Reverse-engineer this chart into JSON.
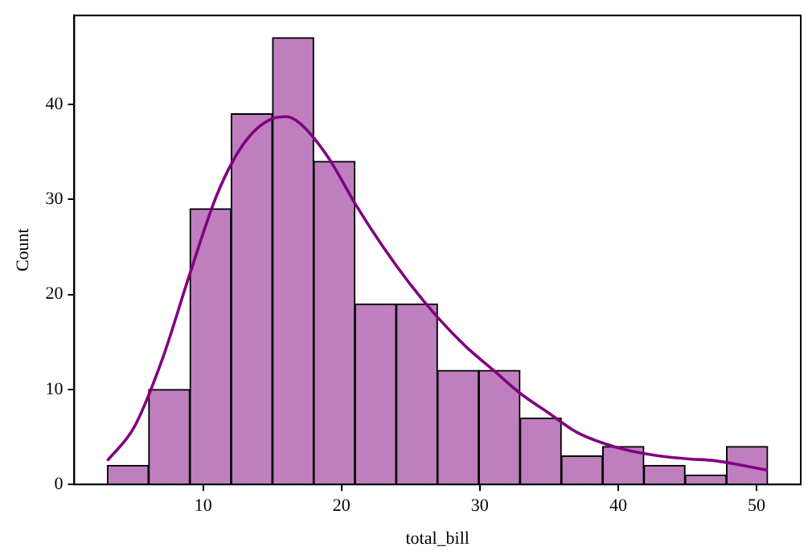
{
  "chart_data": {
    "type": "histogram",
    "xlabel": "total_bill",
    "ylabel": "Count",
    "bins": [
      3.07,
      6.05,
      9.04,
      12.02,
      15.01,
      17.99,
      20.97,
      23.96,
      26.94,
      29.92,
      32.91,
      35.89,
      38.88,
      41.86,
      44.84,
      47.83,
      50.81
    ],
    "values": [
      2,
      10,
      29,
      39,
      47,
      34,
      19,
      19,
      12,
      12,
      7,
      3,
      4,
      2,
      1,
      4
    ],
    "color": "#bf7fbf",
    "series": [
      {
        "type": "line",
        "color": "#800080",
        "x": [
          3.07,
          5,
          7,
          9,
          11,
          13,
          15,
          16,
          17,
          19,
          21,
          23,
          25,
          27,
          29,
          31,
          33,
          35,
          37,
          39,
          41,
          43,
          45,
          47,
          49,
          50.81
        ],
        "values": [
          2.5,
          6,
          13,
          22,
          30.5,
          36,
          38.5,
          38.7,
          38,
          34.5,
          29.5,
          25,
          21,
          17.5,
          14.5,
          12,
          9.5,
          7.5,
          5.5,
          4.3,
          3.5,
          3,
          2.7,
          2.5,
          2,
          1.5
        ]
      }
    ],
    "xlim": [
      0.68,
      53.2
    ],
    "xticks": [
      10,
      20,
      30,
      40,
      50
    ],
    "ylim": [
      0,
      49.35
    ],
    "yticks": [
      0,
      10,
      20,
      30,
      40
    ],
    "grid": false,
    "legend": false
  }
}
